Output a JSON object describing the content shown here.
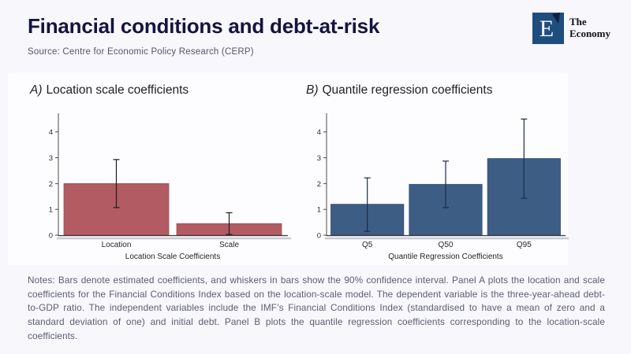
{
  "page": {
    "background": "#f7f7fc",
    "card_background": "#fdfdff"
  },
  "header": {
    "title": "Financial conditions and debt-at-risk",
    "source": "Source: Centre for Economic Policy Research (CERP)"
  },
  "logo": {
    "letter": "E",
    "name_line1": "The",
    "name_line2": "Economy",
    "square_color": "#1d4e7e",
    "notch_color": "#0d2140"
  },
  "notes": "Notes: Bars denote estimated coefficients, and whiskers in bars show the 90% confidence interval. Panel A plots the location and scale coefficients for the Financial Conditions Index based on the location-scale model. The dependent variable is the three-year-ahead debt-to-GDP ratio. The independent variables include the IMF’s Financial Conditions Index (standardised to have a mean of zero and a standard deviation of one) and initial debt. Panel B plots the quantile regression coefficients corresponding to the location-scale coefficients.",
  "chart_data": [
    {
      "type": "bar",
      "panel_label": "A)",
      "title": "Location scale coefficients",
      "xlabel": "Location Scale Coefficients",
      "ylabel": "",
      "categories": [
        "Location",
        "Scale"
      ],
      "values": [
        2.0,
        0.45
      ],
      "ci_low": [
        1.07,
        0.03
      ],
      "ci_high": [
        2.93,
        0.87
      ],
      "ci_level": "90%",
      "yticks": [
        0,
        1,
        2,
        3,
        4
      ],
      "ylim": [
        0,
        4.6
      ],
      "grid": false,
      "legend": "none",
      "bar_color": "#b25b63",
      "bar_stroke": "#9d4f58",
      "whisker_color": "#1c1c1c"
    },
    {
      "type": "bar",
      "panel_label": "B)",
      "title": "Quantile regression coefficients",
      "xlabel": "Quantile Regression Coefficients",
      "ylabel": "",
      "categories": [
        "Q5",
        "Q50",
        "Q95"
      ],
      "values": [
        1.2,
        1.97,
        2.97
      ],
      "ci_low": [
        0.15,
        1.07,
        1.43
      ],
      "ci_high": [
        2.22,
        2.87,
        4.5
      ],
      "ci_level": "90%",
      "yticks": [
        0,
        1,
        2,
        3,
        4
      ],
      "ylim": [
        0,
        4.6
      ],
      "grid": false,
      "legend": "none",
      "bar_color": "#3d5d85",
      "bar_stroke": "#34517a",
      "whisker_color": "#1d2c47"
    }
  ]
}
